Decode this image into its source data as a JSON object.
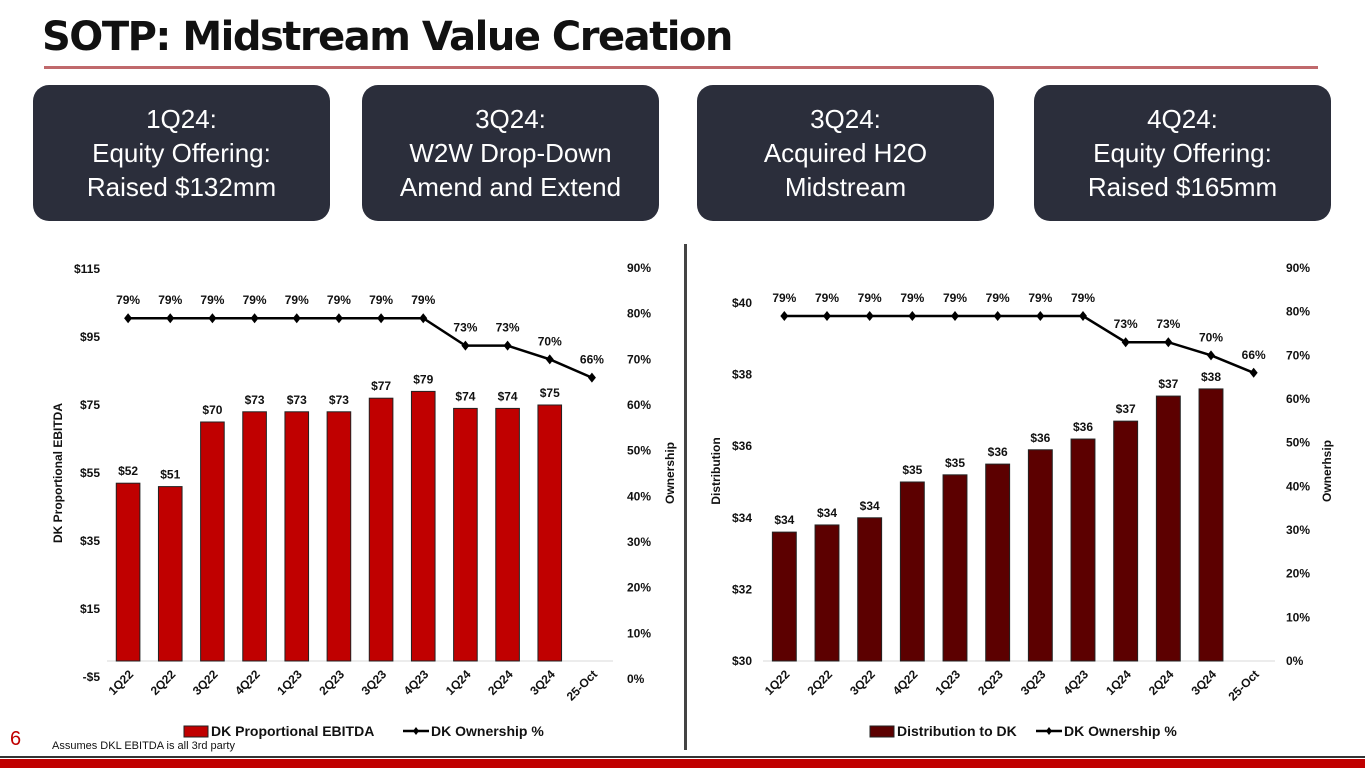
{
  "title": "SOTP: Midstream Value Creation",
  "page_number": "6",
  "footnote": "Assumes DKL EBITDA is all 3rd party",
  "colors": {
    "box_bg": "#2b2e3b",
    "accent_red": "#c00000",
    "ebitda_bar": "#c00000",
    "distribution_bar": "#5c0000",
    "line": "#000000"
  },
  "milestones": [
    {
      "line1": "1Q24:",
      "line2": "Equity Offering:",
      "line3": "Raised $132mm"
    },
    {
      "line1": "3Q24:",
      "line2": "W2W Drop-Down",
      "line3": "Amend and Extend"
    },
    {
      "line1": "3Q24:",
      "line2": "Acquired H2O",
      "line3": "Midstream"
    },
    {
      "line1": "4Q24:",
      "line2": "Equity Offering:",
      "line3": "Raised $165mm"
    }
  ],
  "chart_data": [
    {
      "type": "bar",
      "title": "",
      "categories": [
        "1Q22",
        "2Q22",
        "3Q22",
        "4Q22",
        "1Q23",
        "2Q23",
        "3Q23",
        "4Q23",
        "1Q24",
        "2Q24",
        "3Q24",
        "25-Oct"
      ],
      "series": [
        {
          "name": "DK Proportional EBITDA",
          "type": "bar",
          "axis": "left",
          "values": [
            52,
            51,
            70,
            73,
            73,
            73,
            77,
            79,
            74,
            74,
            75,
            null
          ],
          "labels": [
            "$52",
            "$51",
            "$70",
            "$73",
            "$73",
            "$73",
            "$77",
            "$79",
            "$74",
            "$74",
            "$75",
            ""
          ]
        },
        {
          "name": "DK Ownership %",
          "type": "line",
          "axis": "right",
          "values": [
            79,
            79,
            79,
            79,
            79,
            79,
            79,
            79,
            73,
            73,
            70,
            66
          ],
          "labels": [
            "79%",
            "79%",
            "79%",
            "79%",
            "79%",
            "79%",
            "79%",
            "79%",
            "73%",
            "73%",
            "70%",
            "66%"
          ]
        }
      ],
      "ylabel": "DK Proportional EBITDA",
      "y2label": "Ownership",
      "ylim": [
        -5,
        115
      ],
      "y2lim": [
        0,
        90
      ],
      "yticks": [
        "$115",
        "$95",
        "$75",
        "$55",
        "$35",
        "$15",
        "-$5"
      ],
      "y2ticks": [
        "90%",
        "80%",
        "70%",
        "60%",
        "50%",
        "40%",
        "30%",
        "20%",
        "10%",
        "0%"
      ],
      "legend": [
        "DK Proportional EBITDA",
        "DK Ownership %"
      ],
      "legend_position": "bottom",
      "grid": false
    },
    {
      "type": "bar",
      "title": "",
      "categories": [
        "1Q22",
        "2Q22",
        "3Q22",
        "4Q22",
        "1Q23",
        "2Q23",
        "3Q23",
        "4Q23",
        "1Q24",
        "2Q24",
        "3Q24",
        "25-Oct"
      ],
      "series": [
        {
          "name": "Distribution to DK",
          "type": "bar",
          "axis": "left",
          "values": [
            33.6,
            33.8,
            34.0,
            35.0,
            35.2,
            35.5,
            35.9,
            36.2,
            36.7,
            37.4,
            37.6,
            null
          ],
          "labels": [
            "$34",
            "$34",
            "$34",
            "$35",
            "$35",
            "$36",
            "$36",
            "$36",
            "$37",
            "$37",
            "$38",
            ""
          ]
        },
        {
          "name": "DK Ownership %",
          "type": "line",
          "axis": "right",
          "values": [
            79,
            79,
            79,
            79,
            79,
            79,
            79,
            79,
            73,
            73,
            70,
            66
          ],
          "labels": [
            "79%",
            "79%",
            "79%",
            "79%",
            "79%",
            "79%",
            "79%",
            "79%",
            "73%",
            "73%",
            "70%",
            "66%"
          ]
        }
      ],
      "ylabel": "Distribution",
      "y2label": "Ownerhsip",
      "ylim": [
        30,
        40
      ],
      "y2lim": [
        0,
        90
      ],
      "yticks": [
        "$40",
        "$38",
        "$36",
        "$34",
        "$32",
        "$30"
      ],
      "y2ticks": [
        "90%",
        "80%",
        "70%",
        "60%",
        "50%",
        "40%",
        "30%",
        "20%",
        "10%",
        "0%"
      ],
      "legend": [
        "Distribution to DK",
        "DK Ownership %"
      ],
      "legend_position": "bottom",
      "grid": false
    }
  ]
}
